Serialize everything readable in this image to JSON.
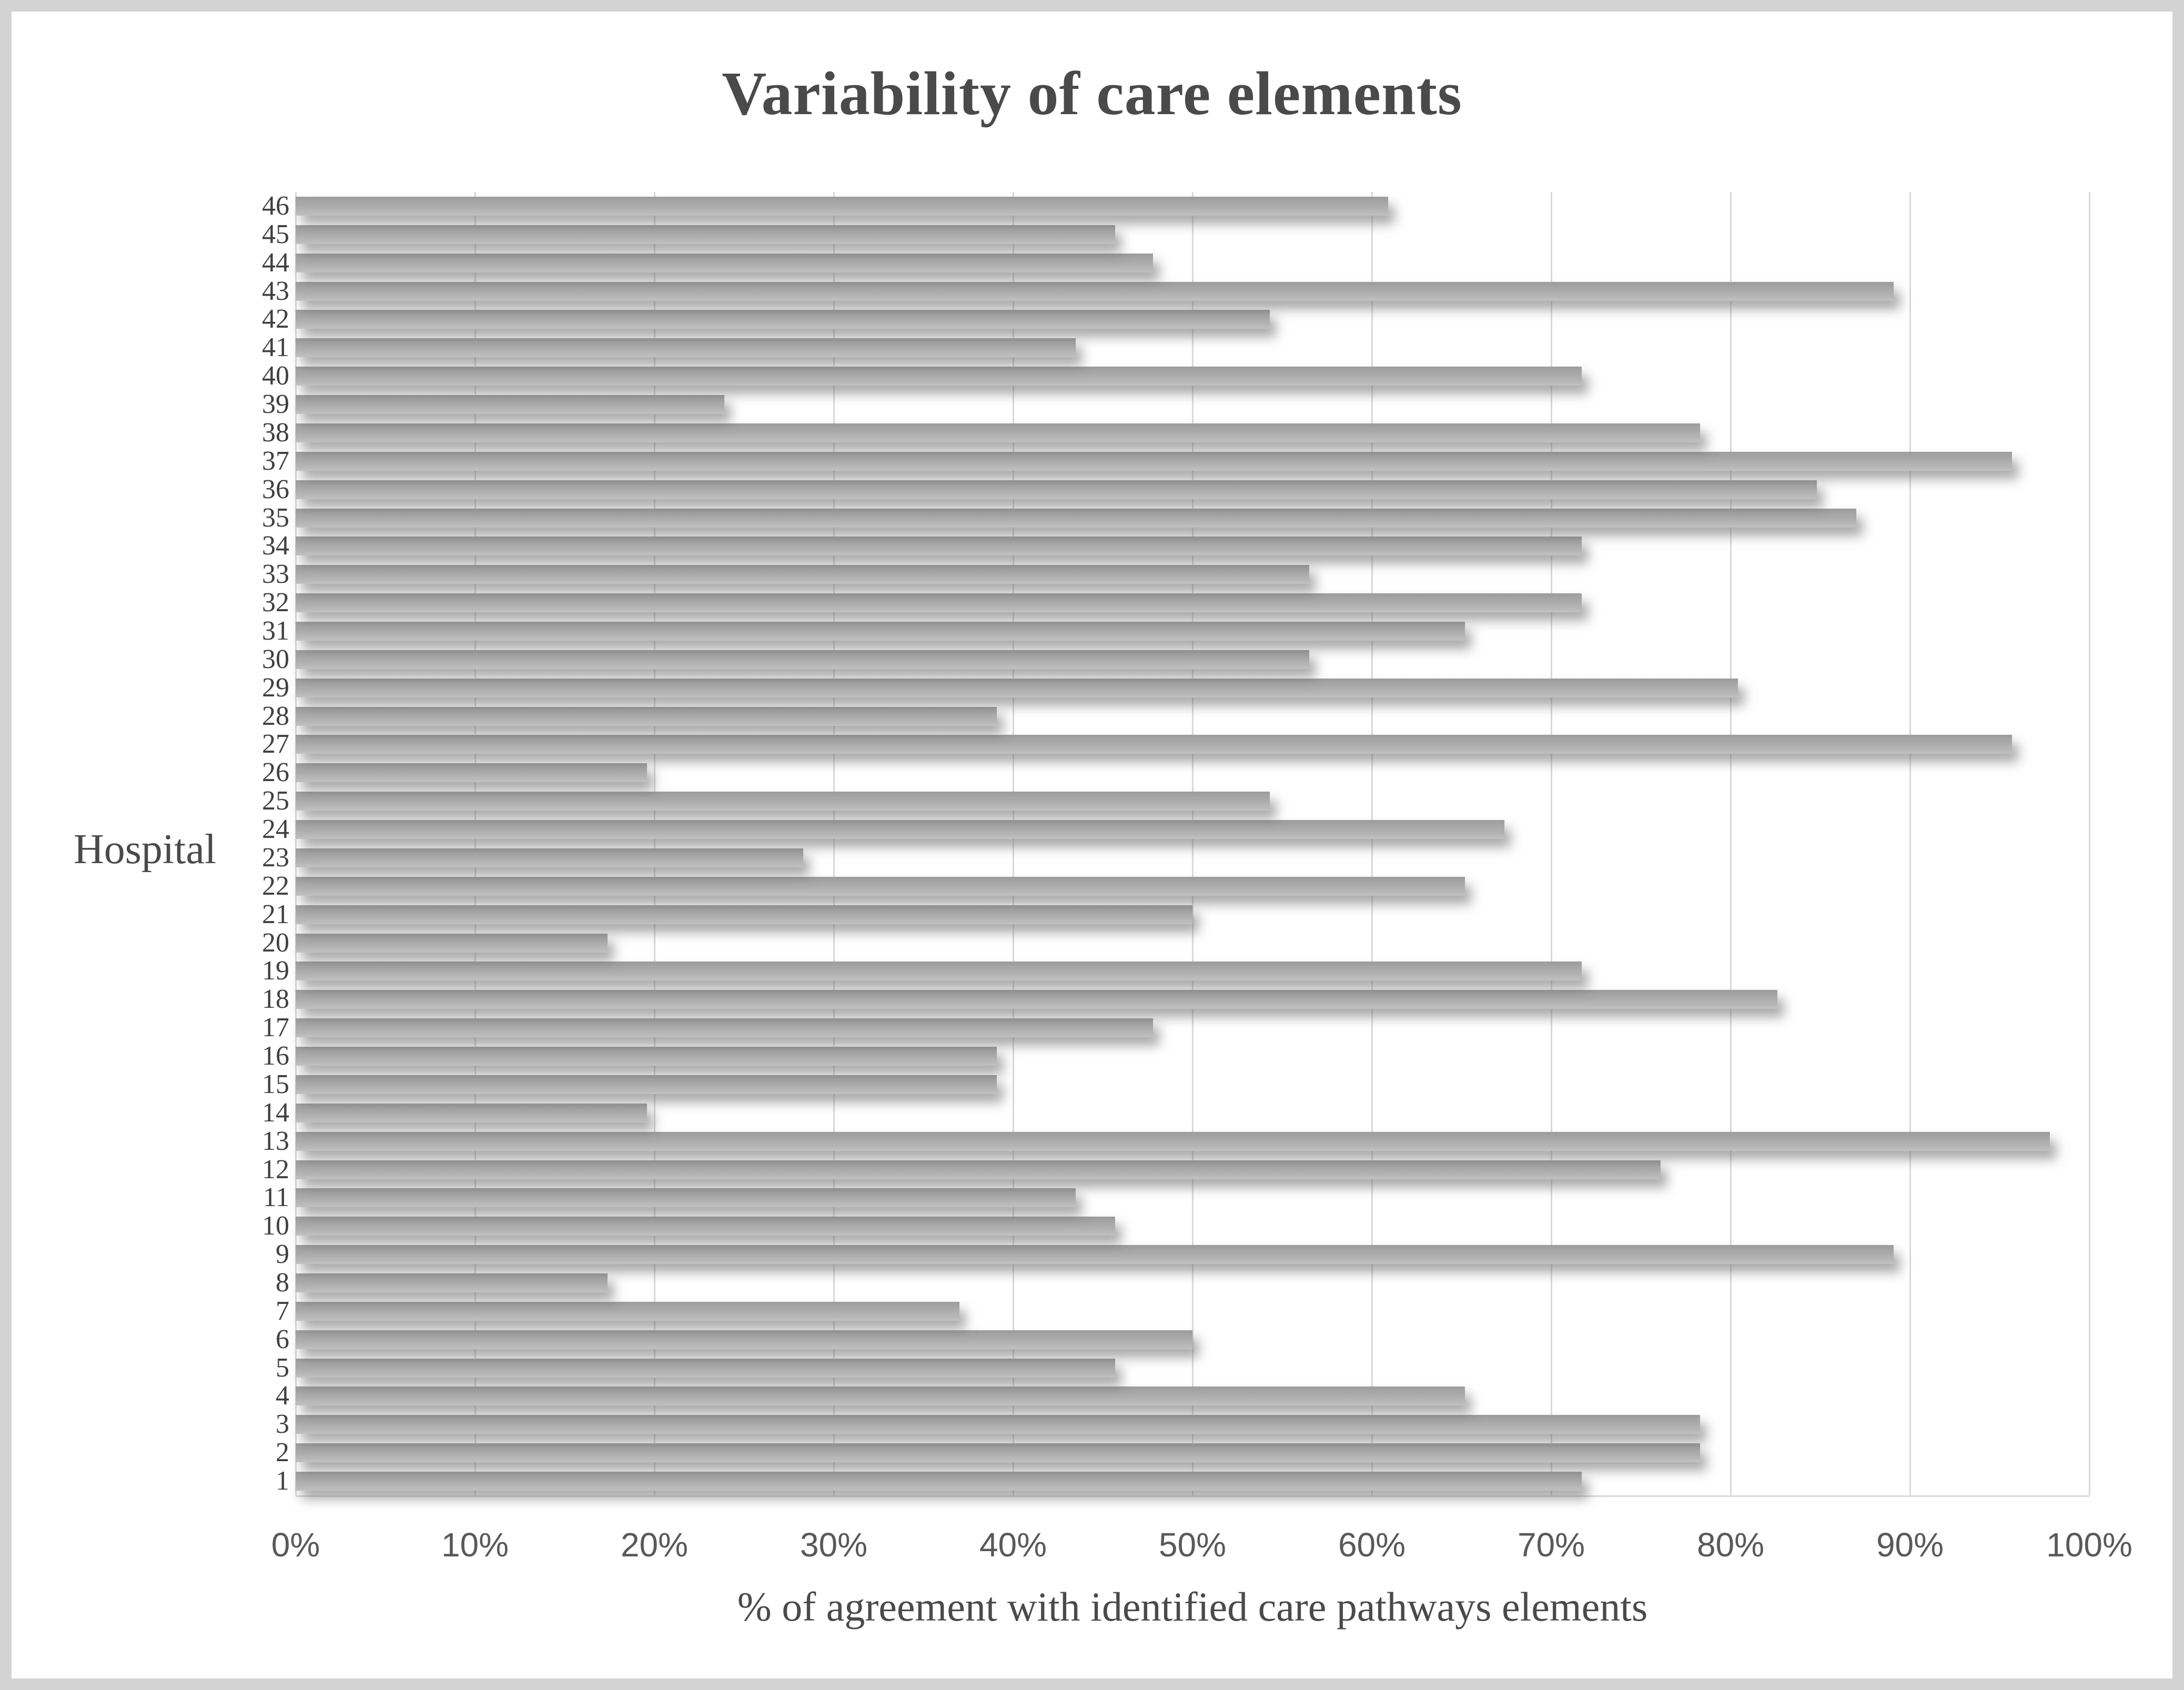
{
  "chart_data": {
    "type": "bar",
    "orientation": "horizontal",
    "title": "Variability of care elements",
    "xlabel": "% of agreement with identified care pathways elements",
    "ylabel": "Hospital",
    "categories": [
      "1",
      "2",
      "3",
      "4",
      "5",
      "6",
      "7",
      "8",
      "9",
      "10",
      "11",
      "12",
      "13",
      "14",
      "15",
      "16",
      "17",
      "18",
      "19",
      "20",
      "21",
      "22",
      "23",
      "24",
      "25",
      "26",
      "27",
      "28",
      "29",
      "30",
      "31",
      "32",
      "33",
      "34",
      "35",
      "36",
      "37",
      "38",
      "39",
      "40",
      "41",
      "42",
      "43",
      "44",
      "45",
      "46"
    ],
    "values": [
      71.7,
      78.3,
      78.3,
      65.2,
      45.7,
      50.0,
      37.0,
      17.4,
      89.1,
      45.7,
      43.5,
      76.1,
      97.8,
      19.6,
      39.1,
      39.1,
      47.8,
      82.6,
      71.7,
      17.4,
      50.0,
      65.2,
      28.3,
      67.4,
      54.3,
      19.6,
      95.7,
      39.1,
      80.4,
      56.5,
      65.2,
      71.7,
      56.5,
      71.7,
      87.0,
      84.8,
      95.7,
      78.3,
      23.9,
      71.7,
      43.5,
      54.3,
      89.1,
      47.8,
      45.7,
      60.9
    ],
    "x_ticks": [
      "0%",
      "10%",
      "20%",
      "30%",
      "40%",
      "50%",
      "60%",
      "70%",
      "80%",
      "90%",
      "100%"
    ],
    "xlim": [
      0,
      100
    ],
    "grid": true,
    "legend": false,
    "data_labels": false,
    "bar_color": "#a9a9a9",
    "gridline_color": "#d9d9d9",
    "title_color": "#4a4a4a",
    "tick_label_color": "#595959",
    "category_label_color": "#404040"
  }
}
